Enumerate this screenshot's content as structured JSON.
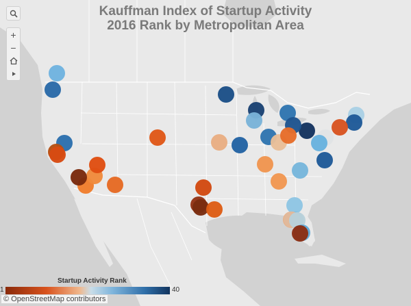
{
  "title_line1": "Kauffman Index of Startup Activity",
  "title_line2": "2016 Rank by Metropolitan Area",
  "toolbar": {
    "search_icon": "search-icon",
    "zoom_in_label": "+",
    "zoom_out_label": "−",
    "home_icon": "home-icon",
    "expand_icon": "triangle-right-icon"
  },
  "legend": {
    "title": "Startup Activity Rank",
    "min_label": "1",
    "max_label": "40",
    "colors": [
      "#8a2a0a",
      "#d9531e",
      "#f0b78c",
      "#c9dde8",
      "#7fb5dc",
      "#2f6ea8",
      "#12345e"
    ]
  },
  "attribution": "© OpenStreetMap contributors",
  "map": {
    "land_color": "#e9e9e9",
    "water_color": "#d2d2d2",
    "border_color": "#ffffff"
  },
  "markers": [
    {
      "color": "#6fb3df"
    },
    {
      "color": "#2a6aa8"
    },
    {
      "color": "#1c4f87"
    },
    {
      "color": "#1b4273"
    },
    {
      "color": "#2f75b0"
    },
    {
      "color": "#7ab3d8"
    },
    {
      "color": "#2f75b0"
    },
    {
      "color": "#15345f"
    },
    {
      "color": "#1f5590"
    },
    {
      "color": "#a9d0e4"
    },
    {
      "color": "#1f5a98"
    },
    {
      "color": "#d85421"
    },
    {
      "color": "#e0e3e5"
    },
    {
      "color": "#68b2de"
    },
    {
      "color": "#e8be98"
    },
    {
      "color": "#e66d2a"
    },
    {
      "color": "#2363a3"
    },
    {
      "color": "#1f5a98"
    },
    {
      "color": "#e8ad82"
    },
    {
      "color": "#77b6db"
    },
    {
      "color": "#df5818"
    },
    {
      "color": "#ef9550"
    },
    {
      "color": "#f19752"
    },
    {
      "color": "#8ec5e3"
    },
    {
      "color": "#2c70ad"
    },
    {
      "color": "#b55013"
    },
    {
      "color": "#d74b13"
    },
    {
      "color": "#7bbcdf"
    },
    {
      "color": "#d24a12"
    },
    {
      "color": "#933416"
    },
    {
      "color": "#7a2c10"
    },
    {
      "color": "#e8ad82"
    },
    {
      "color": "#e56a24"
    },
    {
      "color": "#f07d2c"
    },
    {
      "color": "#ef8a3c"
    },
    {
      "color": "#dd5d15"
    },
    {
      "color": "#7a2a0d"
    },
    {
      "color": "#df4e12"
    },
    {
      "color": "#e0b99c"
    },
    {
      "color": "#b9d1da"
    },
    {
      "color": "#5ea8d7"
    },
    {
      "color": "#8b2e14"
    }
  ]
}
